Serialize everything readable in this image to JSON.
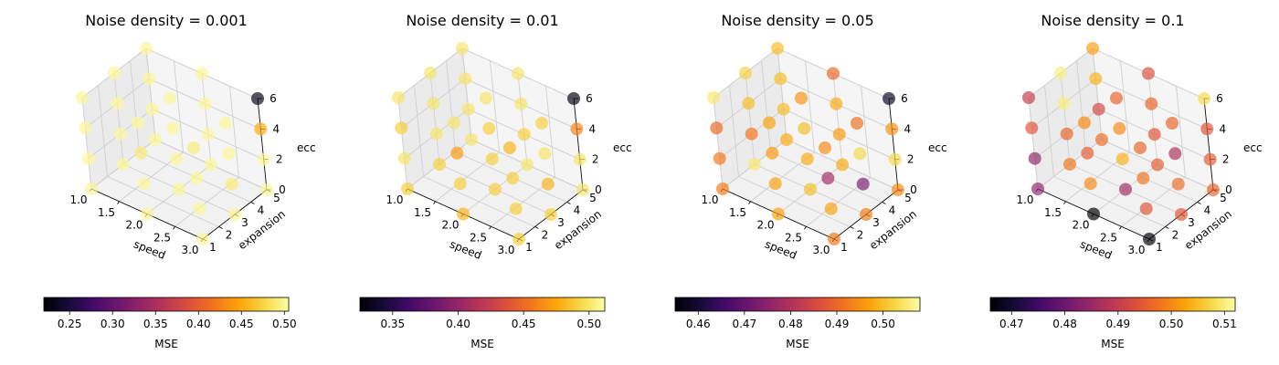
{
  "chart_data": [
    {
      "type": "scatter",
      "title": "Noise density = 0.001",
      "xlabel": "speed",
      "ylabel": "expansion",
      "zlabel": "ecc",
      "xlim": [
        1.0,
        3.0
      ],
      "ylim": [
        1,
        5
      ],
      "zlim": [
        0,
        6
      ],
      "xticks": [
        "1.0",
        "1.5",
        "2.0",
        "2.5",
        "3.0"
      ],
      "yticks": [
        "1",
        "2",
        "3",
        "4",
        "5"
      ],
      "zticks": [
        "0",
        "2",
        "4",
        "6"
      ],
      "colorbar": {
        "label": "MSE",
        "min": 0.22,
        "max": 0.505,
        "ticks": [
          "0.25",
          "0.30",
          "0.35",
          "0.40",
          "0.45",
          "0.50"
        ],
        "tick_values": [
          0.25,
          0.3,
          0.35,
          0.4,
          0.45,
          0.5
        ]
      },
      "points": [
        {
          "x": 1.0,
          "y": 1,
          "z": 0,
          "mse": 0.5
        },
        {
          "x": 1.0,
          "y": 1,
          "z": 2,
          "mse": 0.5
        },
        {
          "x": 1.0,
          "y": 1,
          "z": 4,
          "mse": 0.5
        },
        {
          "x": 1.0,
          "y": 1,
          "z": 6,
          "mse": 0.5
        },
        {
          "x": 1.0,
          "y": 3,
          "z": 0,
          "mse": 0.5
        },
        {
          "x": 1.0,
          "y": 3,
          "z": 2,
          "mse": 0.5
        },
        {
          "x": 1.0,
          "y": 3,
          "z": 4,
          "mse": 0.5
        },
        {
          "x": 1.0,
          "y": 3,
          "z": 6,
          "mse": 0.5
        },
        {
          "x": 1.0,
          "y": 5,
          "z": 0,
          "mse": 0.5
        },
        {
          "x": 1.0,
          "y": 5,
          "z": 2,
          "mse": 0.5
        },
        {
          "x": 1.0,
          "y": 5,
          "z": 4,
          "mse": 0.5
        },
        {
          "x": 1.0,
          "y": 5,
          "z": 6,
          "mse": 0.5
        },
        {
          "x": 2.0,
          "y": 1,
          "z": 0,
          "mse": 0.5
        },
        {
          "x": 2.0,
          "y": 1,
          "z": 2,
          "mse": 0.5
        },
        {
          "x": 2.0,
          "y": 1,
          "z": 4,
          "mse": 0.49
        },
        {
          "x": 2.0,
          "y": 1,
          "z": 6,
          "mse": 0.5
        },
        {
          "x": 2.0,
          "y": 3,
          "z": 0,
          "mse": 0.5
        },
        {
          "x": 2.0,
          "y": 3,
          "z": 2,
          "mse": 0.5
        },
        {
          "x": 2.0,
          "y": 3,
          "z": 4,
          "mse": 0.5
        },
        {
          "x": 2.0,
          "y": 3,
          "z": 6,
          "mse": 0.5
        },
        {
          "x": 2.0,
          "y": 5,
          "z": 0,
          "mse": 0.5
        },
        {
          "x": 2.0,
          "y": 5,
          "z": 2,
          "mse": 0.5
        },
        {
          "x": 2.0,
          "y": 5,
          "z": 4,
          "mse": 0.5
        },
        {
          "x": 2.0,
          "y": 5,
          "z": 6,
          "mse": 0.5
        },
        {
          "x": 3.0,
          "y": 1,
          "z": 0,
          "mse": 0.5
        },
        {
          "x": 3.0,
          "y": 1,
          "z": 2,
          "mse": 0.5
        },
        {
          "x": 3.0,
          "y": 1,
          "z": 4,
          "mse": 0.5
        },
        {
          "x": 3.0,
          "y": 1,
          "z": 6,
          "mse": 0.49
        },
        {
          "x": 3.0,
          "y": 3,
          "z": 0,
          "mse": 0.5
        },
        {
          "x": 3.0,
          "y": 3,
          "z": 2,
          "mse": 0.49
        },
        {
          "x": 3.0,
          "y": 3,
          "z": 4,
          "mse": 0.5
        },
        {
          "x": 3.0,
          "y": 3,
          "z": 6,
          "mse": 0.5
        },
        {
          "x": 3.0,
          "y": 5,
          "z": 0,
          "mse": 0.5
        },
        {
          "x": 3.0,
          "y": 5,
          "z": 2,
          "mse": 0.5
        },
        {
          "x": 3.0,
          "y": 5,
          "z": 4,
          "mse": 0.45
        },
        {
          "x": 3.0,
          "y": 5,
          "z": 6,
          "mse": 0.23
        }
      ]
    },
    {
      "type": "scatter",
      "title": "Noise density = 0.01",
      "xlabel": "speed",
      "ylabel": "expansion",
      "zlabel": "ecc",
      "xlim": [
        1.0,
        3.0
      ],
      "ylim": [
        1,
        5
      ],
      "zlim": [
        0,
        6
      ],
      "xticks": [
        "1.0",
        "1.5",
        "2.0",
        "2.5",
        "3.0"
      ],
      "yticks": [
        "1",
        "2",
        "3",
        "4",
        "5"
      ],
      "zticks": [
        "0",
        "2",
        "4",
        "6"
      ],
      "colorbar": {
        "label": "MSE",
        "min": 0.325,
        "max": 0.512,
        "ticks": [
          "0.35",
          "0.40",
          "0.45",
          "0.50"
        ],
        "tick_values": [
          0.35,
          0.4,
          0.45,
          0.5
        ]
      },
      "points": [
        {
          "x": 1.0,
          "y": 1,
          "z": 0,
          "mse": 0.49
        },
        {
          "x": 1.0,
          "y": 1,
          "z": 2,
          "mse": 0.5
        },
        {
          "x": 1.0,
          "y": 1,
          "z": 4,
          "mse": 0.49
        },
        {
          "x": 1.0,
          "y": 1,
          "z": 6,
          "mse": 0.5
        },
        {
          "x": 1.0,
          "y": 3,
          "z": 0,
          "mse": 0.49
        },
        {
          "x": 1.0,
          "y": 3,
          "z": 2,
          "mse": 0.5
        },
        {
          "x": 1.0,
          "y": 3,
          "z": 4,
          "mse": 0.5
        },
        {
          "x": 1.0,
          "y": 3,
          "z": 6,
          "mse": 0.5
        },
        {
          "x": 1.0,
          "y": 5,
          "z": 0,
          "mse": 0.5
        },
        {
          "x": 1.0,
          "y": 5,
          "z": 2,
          "mse": 0.5
        },
        {
          "x": 1.0,
          "y": 5,
          "z": 4,
          "mse": 0.5
        },
        {
          "x": 1.0,
          "y": 5,
          "z": 6,
          "mse": 0.5
        },
        {
          "x": 2.0,
          "y": 1,
          "z": 0,
          "mse": 0.48
        },
        {
          "x": 2.0,
          "y": 1,
          "z": 2,
          "mse": 0.49
        },
        {
          "x": 2.0,
          "y": 1,
          "z": 4,
          "mse": 0.47
        },
        {
          "x": 2.0,
          "y": 1,
          "z": 6,
          "mse": 0.5
        },
        {
          "x": 2.0,
          "y": 3,
          "z": 0,
          "mse": 0.49
        },
        {
          "x": 2.0,
          "y": 3,
          "z": 2,
          "mse": 0.49
        },
        {
          "x": 2.0,
          "y": 3,
          "z": 4,
          "mse": 0.49
        },
        {
          "x": 2.0,
          "y": 3,
          "z": 6,
          "mse": 0.5
        },
        {
          "x": 2.0,
          "y": 5,
          "z": 0,
          "mse": 0.5
        },
        {
          "x": 2.0,
          "y": 5,
          "z": 2,
          "mse": 0.49
        },
        {
          "x": 2.0,
          "y": 5,
          "z": 4,
          "mse": 0.5
        },
        {
          "x": 2.0,
          "y": 5,
          "z": 6,
          "mse": 0.5
        },
        {
          "x": 3.0,
          "y": 1,
          "z": 0,
          "mse": 0.49
        },
        {
          "x": 3.0,
          "y": 1,
          "z": 2,
          "mse": 0.49
        },
        {
          "x": 3.0,
          "y": 1,
          "z": 4,
          "mse": 0.49
        },
        {
          "x": 3.0,
          "y": 1,
          "z": 6,
          "mse": 0.48
        },
        {
          "x": 3.0,
          "y": 3,
          "z": 0,
          "mse": 0.49
        },
        {
          "x": 3.0,
          "y": 3,
          "z": 2,
          "mse": 0.48
        },
        {
          "x": 3.0,
          "y": 3,
          "z": 4,
          "mse": 0.5
        },
        {
          "x": 3.0,
          "y": 3,
          "z": 6,
          "mse": 0.49
        },
        {
          "x": 3.0,
          "y": 5,
          "z": 0,
          "mse": 0.5
        },
        {
          "x": 3.0,
          "y": 5,
          "z": 2,
          "mse": 0.5
        },
        {
          "x": 3.0,
          "y": 5,
          "z": 4,
          "mse": 0.46
        },
        {
          "x": 3.0,
          "y": 5,
          "z": 6,
          "mse": 0.33
        }
      ]
    },
    {
      "type": "scatter",
      "title": "Noise density = 0.05",
      "xlabel": "speed",
      "ylabel": "expansion",
      "zlabel": "ecc",
      "xlim": [
        1.0,
        3.0
      ],
      "ylim": [
        1,
        5
      ],
      "zlim": [
        0,
        6
      ],
      "xticks": [
        "1.0",
        "1.5",
        "2.0",
        "2.5",
        "3.0"
      ],
      "yticks": [
        "1",
        "2",
        "3",
        "4",
        "5"
      ],
      "zticks": [
        "0",
        "2",
        "4",
        "6"
      ],
      "colorbar": {
        "label": "MSE",
        "min": 0.455,
        "max": 0.508,
        "ticks": [
          "0.46",
          "0.47",
          "0.48",
          "0.49",
          "0.50"
        ],
        "tick_values": [
          0.46,
          0.47,
          0.48,
          0.49,
          0.5
        ]
      },
      "points": [
        {
          "x": 1.0,
          "y": 1,
          "z": 0,
          "mse": 0.493
        },
        {
          "x": 1.0,
          "y": 1,
          "z": 2,
          "mse": 0.492
        },
        {
          "x": 1.0,
          "y": 1,
          "z": 4,
          "mse": 0.49
        },
        {
          "x": 1.0,
          "y": 1,
          "z": 6,
          "mse": 0.505
        },
        {
          "x": 1.0,
          "y": 3,
          "z": 0,
          "mse": 0.505
        },
        {
          "x": 1.0,
          "y": 3,
          "z": 2,
          "mse": 0.492
        },
        {
          "x": 1.0,
          "y": 3,
          "z": 4,
          "mse": 0.5
        },
        {
          "x": 1.0,
          "y": 3,
          "z": 6,
          "mse": 0.502
        },
        {
          "x": 1.0,
          "y": 5,
          "z": 0,
          "mse": 0.498
        },
        {
          "x": 1.0,
          "y": 5,
          "z": 2,
          "mse": 0.5
        },
        {
          "x": 1.0,
          "y": 5,
          "z": 4,
          "mse": 0.5
        },
        {
          "x": 1.0,
          "y": 5,
          "z": 6,
          "mse": 0.5
        },
        {
          "x": 2.0,
          "y": 1,
          "z": 0,
          "mse": 0.497
        },
        {
          "x": 2.0,
          "y": 1,
          "z": 2,
          "mse": 0.497
        },
        {
          "x": 2.0,
          "y": 1,
          "z": 4,
          "mse": 0.496
        },
        {
          "x": 2.0,
          "y": 1,
          "z": 6,
          "mse": 0.497
        },
        {
          "x": 2.0,
          "y": 3,
          "z": 0,
          "mse": 0.5
        },
        {
          "x": 2.0,
          "y": 3,
          "z": 2,
          "mse": 0.498
        },
        {
          "x": 2.0,
          "y": 3,
          "z": 4,
          "mse": 0.5
        },
        {
          "x": 2.0,
          "y": 3,
          "z": 6,
          "mse": 0.495
        },
        {
          "x": 2.0,
          "y": 5,
          "z": 0,
          "mse": 0.498
        },
        {
          "x": 2.0,
          "y": 5,
          "z": 2,
          "mse": 0.496
        },
        {
          "x": 2.0,
          "y": 5,
          "z": 4,
          "mse": 0.498
        },
        {
          "x": 2.0,
          "y": 5,
          "z": 6,
          "mse": 0.49
        },
        {
          "x": 3.0,
          "y": 1,
          "z": 0,
          "mse": 0.492
        },
        {
          "x": 3.0,
          "y": 1,
          "z": 2,
          "mse": 0.497
        },
        {
          "x": 3.0,
          "y": 1,
          "z": 4,
          "mse": 0.478
        },
        {
          "x": 3.0,
          "y": 1,
          "z": 6,
          "mse": 0.494
        },
        {
          "x": 3.0,
          "y": 3,
          "z": 0,
          "mse": 0.493
        },
        {
          "x": 3.0,
          "y": 3,
          "z": 2,
          "mse": 0.473
        },
        {
          "x": 3.0,
          "y": 3,
          "z": 4,
          "mse": 0.503
        },
        {
          "x": 3.0,
          "y": 3,
          "z": 6,
          "mse": 0.491
        },
        {
          "x": 3.0,
          "y": 5,
          "z": 0,
          "mse": 0.494
        },
        {
          "x": 3.0,
          "y": 5,
          "z": 2,
          "mse": 0.503
        },
        {
          "x": 3.0,
          "y": 5,
          "z": 4,
          "mse": 0.495
        },
        {
          "x": 3.0,
          "y": 5,
          "z": 6,
          "mse": 0.458
        }
      ]
    },
    {
      "type": "scatter",
      "title": "Noise density = 0.1",
      "xlabel": "speed",
      "ylabel": "expansion",
      "zlabel": "ecc",
      "xlim": [
        1.0,
        3.0
      ],
      "ylim": [
        1,
        5
      ],
      "zlim": [
        0,
        6
      ],
      "xticks": [
        "1.0",
        "1.5",
        "2.0",
        "2.5",
        "3.0"
      ],
      "yticks": [
        "1",
        "2",
        "3",
        "4",
        "5"
      ],
      "zticks": [
        "0",
        "2",
        "4",
        "6"
      ],
      "colorbar": {
        "label": "MSE",
        "min": 0.466,
        "max": 0.512,
        "ticks": [
          "0.47",
          "0.48",
          "0.49",
          "0.50",
          "0.51"
        ],
        "tick_values": [
          0.47,
          0.48,
          0.49,
          0.5,
          0.51
        ]
      },
      "points": [
        {
          "x": 1.0,
          "y": 1,
          "z": 0,
          "mse": 0.484
        },
        {
          "x": 1.0,
          "y": 1,
          "z": 2,
          "mse": 0.484
        },
        {
          "x": 1.0,
          "y": 1,
          "z": 4,
          "mse": 0.494
        },
        {
          "x": 1.0,
          "y": 1,
          "z": 6,
          "mse": 0.49
        },
        {
          "x": 1.0,
          "y": 3,
          "z": 0,
          "mse": 0.498
        },
        {
          "x": 1.0,
          "y": 3,
          "z": 2,
          "mse": 0.496
        },
        {
          "x": 1.0,
          "y": 3,
          "z": 4,
          "mse": 0.51
        },
        {
          "x": 1.0,
          "y": 3,
          "z": 6,
          "mse": 0.51
        },
        {
          "x": 1.0,
          "y": 5,
          "z": 0,
          "mse": 0.497
        },
        {
          "x": 1.0,
          "y": 5,
          "z": 2,
          "mse": 0.492
        },
        {
          "x": 1.0,
          "y": 5,
          "z": 4,
          "mse": 0.504
        },
        {
          "x": 1.0,
          "y": 5,
          "z": 6,
          "mse": 0.502
        },
        {
          "x": 2.0,
          "y": 1,
          "z": 0,
          "mse": 0.466
        },
        {
          "x": 2.0,
          "y": 1,
          "z": 2,
          "mse": 0.5
        },
        {
          "x": 2.0,
          "y": 1,
          "z": 4,
          "mse": 0.495
        },
        {
          "x": 2.0,
          "y": 1,
          "z": 6,
          "mse": 0.5
        },
        {
          "x": 2.0,
          "y": 3,
          "z": 0,
          "mse": 0.486
        },
        {
          "x": 2.0,
          "y": 3,
          "z": 2,
          "mse": 0.504
        },
        {
          "x": 2.0,
          "y": 3,
          "z": 4,
          "mse": 0.5
        },
        {
          "x": 2.0,
          "y": 3,
          "z": 6,
          "mse": 0.496
        },
        {
          "x": 2.0,
          "y": 5,
          "z": 0,
          "mse": 0.495
        },
        {
          "x": 2.0,
          "y": 5,
          "z": 2,
          "mse": 0.494
        },
        {
          "x": 2.0,
          "y": 5,
          "z": 4,
          "mse": 0.496
        },
        {
          "x": 2.0,
          "y": 5,
          "z": 6,
          "mse": 0.493
        },
        {
          "x": 3.0,
          "y": 1,
          "z": 0,
          "mse": 0.466
        },
        {
          "x": 3.0,
          "y": 1,
          "z": 2,
          "mse": 0.494
        },
        {
          "x": 3.0,
          "y": 1,
          "z": 4,
          "mse": 0.498
        },
        {
          "x": 3.0,
          "y": 1,
          "z": 6,
          "mse": 0.496
        },
        {
          "x": 3.0,
          "y": 3,
          "z": 0,
          "mse": 0.494
        },
        {
          "x": 3.0,
          "y": 3,
          "z": 2,
          "mse": 0.497
        },
        {
          "x": 3.0,
          "y": 3,
          "z": 4,
          "mse": 0.487
        },
        {
          "x": 3.0,
          "y": 3,
          "z": 6,
          "mse": 0.496
        },
        {
          "x": 3.0,
          "y": 5,
          "z": 0,
          "mse": 0.496
        },
        {
          "x": 3.0,
          "y": 5,
          "z": 2,
          "mse": 0.495
        },
        {
          "x": 3.0,
          "y": 5,
          "z": 4,
          "mse": 0.494
        },
        {
          "x": 3.0,
          "y": 5,
          "z": 6,
          "mse": 0.508
        }
      ]
    }
  ]
}
